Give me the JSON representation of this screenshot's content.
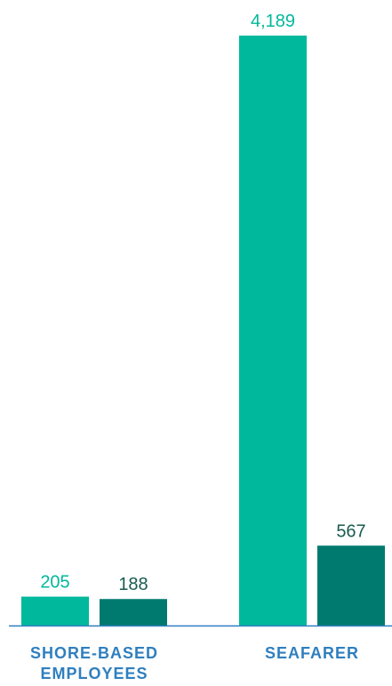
{
  "chart_data": {
    "type": "bar",
    "categories": [
      "SHORE-BASED EMPLOYEES",
      "SEAFARER"
    ],
    "series": [
      {
        "color": "#00b89c",
        "values": [
          205,
          4189
        ],
        "value_labels": [
          "205",
          "4,189"
        ]
      },
      {
        "color": "#007a6e",
        "values": [
          188,
          567
        ],
        "value_labels": [
          "188",
          "567"
        ]
      }
    ]
  }
}
